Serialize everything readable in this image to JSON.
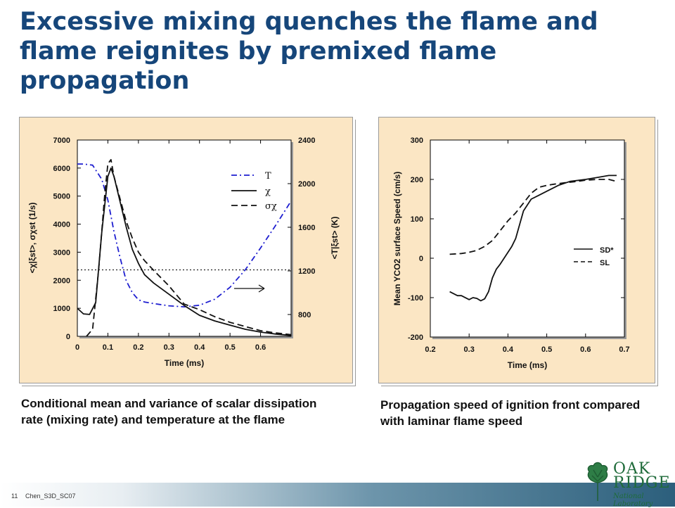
{
  "slide": {
    "title": "Excessive mixing quenches the flame and flame reignites by premixed flame propagation",
    "caption_left": "Conditional mean and variance of scalar dissipation rate (mixing rate) and temperature at the flame",
    "caption_right": "Propagation speed of ignition front compared with laminar flame speed",
    "page_number": "11",
    "footer_label": "Chen_S3D_SC07",
    "logo": {
      "line1": "OAK",
      "line2": "RIDGE",
      "line3": "National Laboratory"
    }
  },
  "colors": {
    "title": "#16467a",
    "panel": "#fbe6c4",
    "temperature_series": "#1f1fd0",
    "logo": "#1f6b3a"
  },
  "chart_data": [
    {
      "type": "line",
      "xlabel": "Time (ms)",
      "ylabel_left": "<χ|ξst>, σχst (1/s)",
      "ylabel_right": "<T|ξst> (K)",
      "xlim": [
        0,
        0.7
      ],
      "ylim_left": [
        0,
        7000
      ],
      "ylim_right": [
        600,
        2400
      ],
      "x_ticks": [
        "0",
        "0.1",
        "0.2",
        "0.3",
        "0.4",
        "0.5",
        "0.6"
      ],
      "y_ticks_left": [
        "0",
        "1000",
        "2000",
        "3000",
        "4000",
        "5000",
        "6000",
        "7000"
      ],
      "y_ticks_right": [
        "800",
        "1200",
        "1600",
        "2000",
        "2400"
      ],
      "legend": [
        "T",
        "χ",
        "σχ"
      ],
      "grid": false,
      "reference_line": {
        "axis": "left",
        "value": 2370,
        "style": "dotted"
      },
      "series": [
        {
          "name": "T",
          "axis": "right",
          "style": "dash-dot",
          "color": "#1f1fd0",
          "x": [
            0,
            0.02,
            0.05,
            0.08,
            0.1,
            0.12,
            0.14,
            0.16,
            0.18,
            0.2,
            0.22,
            0.25,
            0.3,
            0.35,
            0.4,
            0.45,
            0.5,
            0.55,
            0.6,
            0.65,
            0.7
          ],
          "y": [
            2180,
            2180,
            2170,
            2040,
            1850,
            1560,
            1320,
            1110,
            1000,
            935,
            915,
            900,
            880,
            870,
            885,
            940,
            1050,
            1210,
            1410,
            1620,
            1840
          ]
        },
        {
          "name": "χ",
          "axis": "left",
          "style": "solid",
          "color": "#111111",
          "x": [
            0,
            0.02,
            0.04,
            0.06,
            0.08,
            0.1,
            0.11,
            0.12,
            0.14,
            0.16,
            0.18,
            0.2,
            0.22,
            0.25,
            0.3,
            0.35,
            0.4,
            0.45,
            0.5,
            0.55,
            0.6,
            0.65,
            0.7
          ],
          "y": [
            1000,
            800,
            780,
            1200,
            3700,
            5700,
            6000,
            5700,
            4800,
            3900,
            3100,
            2600,
            2200,
            1900,
            1500,
            1100,
            750,
            550,
            400,
            250,
            150,
            80,
            30
          ]
        },
        {
          "name": "σχ",
          "axis": "left",
          "style": "dashed",
          "color": "#111111",
          "x": [
            0.03,
            0.05,
            0.07,
            0.09,
            0.1,
            0.11,
            0.12,
            0.14,
            0.16,
            0.18,
            0.2,
            0.22,
            0.25,
            0.3,
            0.35,
            0.4,
            0.45,
            0.5,
            0.55,
            0.6,
            0.65,
            0.7
          ],
          "y": [
            0,
            250,
            2400,
            5100,
            6150,
            6300,
            5700,
            4900,
            4100,
            3500,
            3000,
            2700,
            2350,
            1800,
            1150,
            950,
            700,
            500,
            350,
            200,
            120,
            60
          ]
        }
      ]
    },
    {
      "type": "line",
      "xlabel": "Time (ms)",
      "ylabel": "Mean YCO2 surface Speed (cm/s)",
      "xlim": [
        0.2,
        0.7
      ],
      "ylim": [
        -200,
        300
      ],
      "x_ticks": [
        "0.2",
        "0.3",
        "0.4",
        "0.5",
        "0.6",
        "0.7"
      ],
      "y_ticks": [
        "-200",
        "-100",
        "0",
        "100",
        "200",
        "300"
      ],
      "legend": [
        "SD*",
        "SL"
      ],
      "grid": false,
      "series": [
        {
          "name": "SD*",
          "style": "solid",
          "color": "#111111",
          "x": [
            0.25,
            0.27,
            0.28,
            0.3,
            0.31,
            0.32,
            0.33,
            0.34,
            0.35,
            0.36,
            0.37,
            0.38,
            0.39,
            0.4,
            0.41,
            0.42,
            0.44,
            0.46,
            0.48,
            0.5,
            0.53,
            0.56,
            0.6,
            0.63,
            0.66,
            0.68
          ],
          "y": [
            -85,
            -95,
            -95,
            -105,
            -100,
            -102,
            -108,
            -103,
            -85,
            -50,
            -28,
            -15,
            0,
            15,
            30,
            50,
            120,
            150,
            160,
            170,
            185,
            195,
            200,
            205,
            210,
            210
          ]
        },
        {
          "name": "SL",
          "style": "dashed",
          "color": "#111111",
          "x": [
            0.25,
            0.28,
            0.3,
            0.32,
            0.34,
            0.36,
            0.38,
            0.4,
            0.42,
            0.44,
            0.46,
            0.48,
            0.5,
            0.52,
            0.55,
            0.58,
            0.6,
            0.63,
            0.66,
            0.68
          ],
          "y": [
            10,
            12,
            15,
            20,
            30,
            45,
            70,
            95,
            115,
            140,
            165,
            180,
            185,
            188,
            192,
            195,
            198,
            200,
            200,
            195
          ]
        }
      ]
    }
  ]
}
